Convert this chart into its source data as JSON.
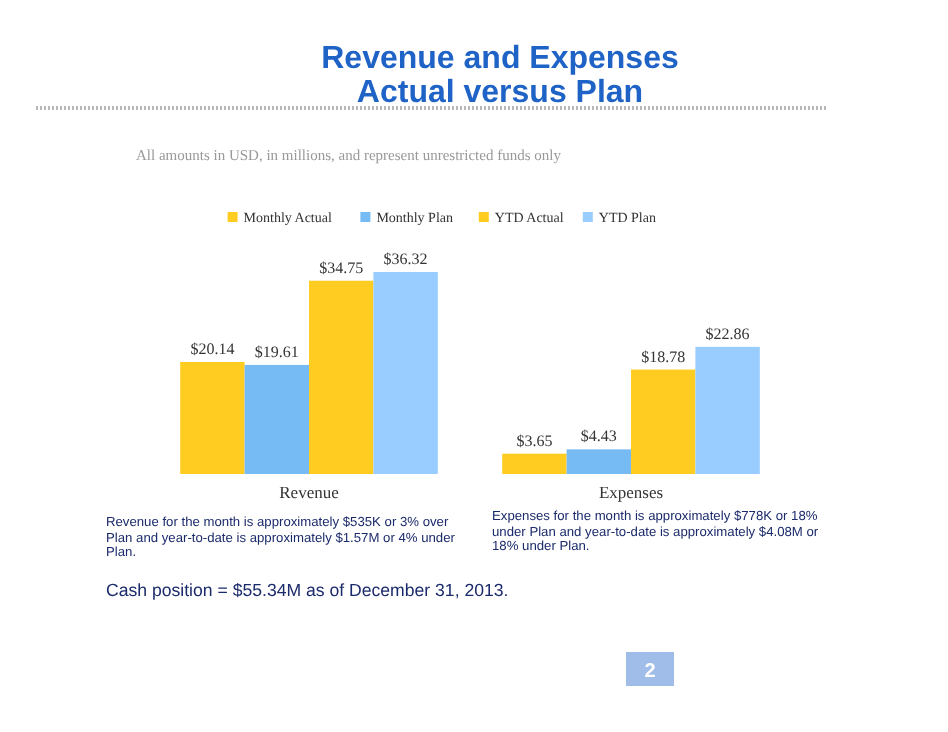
{
  "chart_data": {
    "type": "bar",
    "title": "Revenue and Expenses\nActual versus Plan",
    "subtitle": "All amounts in USD, in millions, and represent unrestricted funds only",
    "categories": [
      "Revenue",
      "Expenses"
    ],
    "series": [
      {
        "name": "Monthly Actual",
        "color": "#ffcc22",
        "values": [
          20.14,
          3.65
        ],
        "value_labels": [
          "$20.14",
          "$3.65"
        ]
      },
      {
        "name": "Monthly Plan",
        "color": "#77bbf5",
        "values": [
          19.61,
          4.43
        ],
        "value_labels": [
          "$19.61",
          "$4.43"
        ]
      },
      {
        "name": "YTD Actual",
        "color": "#ffcc22",
        "values": [
          34.75,
          18.78
        ],
        "value_labels": [
          "$34.75",
          "$18.78"
        ]
      },
      {
        "name": "YTD Plan",
        "color": "#99ccff",
        "values": [
          36.32,
          22.86
        ],
        "value_labels": [
          "$36.32",
          "$22.86"
        ]
      }
    ],
    "legend": "top",
    "annotations": [
      "Revenue for the month is approximately $535K or 3% over Plan and year-to-date is approximately $1.57M or 4% under Plan.",
      "Expenses for the month is approximately $778K or 18% under Plan and year-to-date is approximately $4.08M or 18% under Plan.",
      "Cash position = $55.34M as of December 31, 2013.",
      "2"
    ]
  }
}
